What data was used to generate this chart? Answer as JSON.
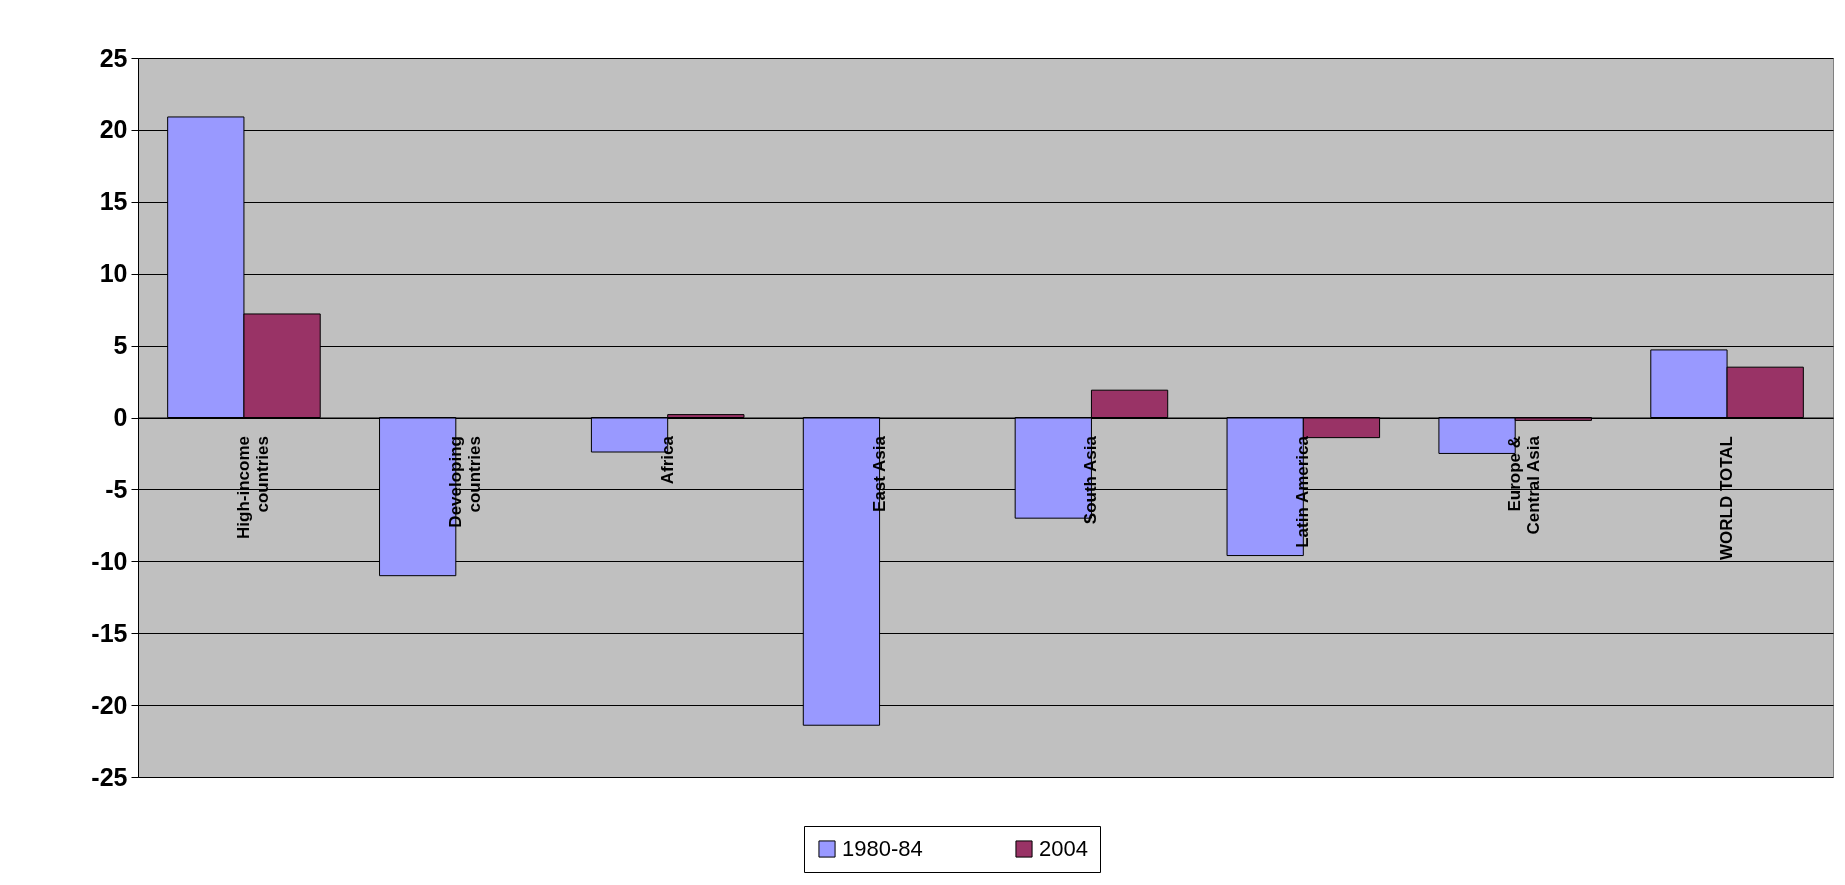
{
  "chart_data": {
    "type": "bar",
    "categories": [
      "High-income\ncountries",
      "Developing\ncountries",
      "Africa",
      "East Asia",
      "South Asia",
      "Latin America",
      "Europe &\nCentral Asia",
      "WORLD TOTAL"
    ],
    "series": [
      {
        "name": "1980-84",
        "color": "#9999ff",
        "values": [
          20.9,
          -11.0,
          -2.4,
          -21.4,
          -7.0,
          -9.6,
          -2.5,
          4.7
        ]
      },
      {
        "name": "2004",
        "color": "#993366",
        "values": [
          7.2,
          null,
          0.2,
          null,
          1.9,
          -1.4,
          -0.2,
          3.5
        ]
      }
    ],
    "ylim": [
      -25,
      25
    ],
    "yticks": [
      -25,
      -20,
      -15,
      -10,
      -5,
      0,
      5,
      10,
      15,
      20,
      25
    ],
    "grid": "y",
    "legend": "bottom"
  }
}
